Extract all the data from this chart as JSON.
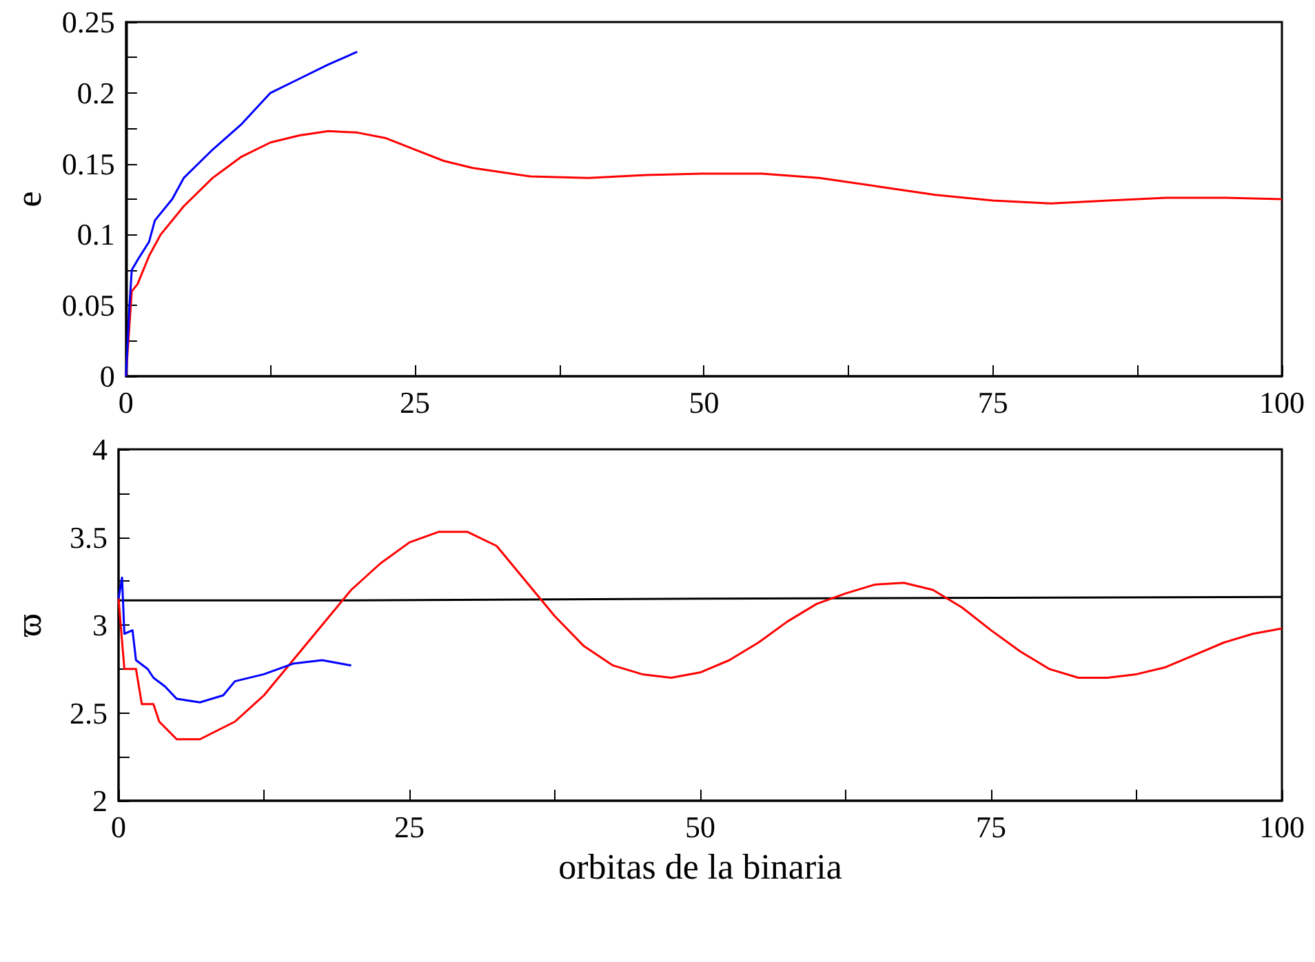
{
  "chart_data": [
    {
      "type": "line",
      "ylabel": "e",
      "xlim": [
        0,
        100
      ],
      "ylim": [
        0,
        0.25
      ],
      "xticks": [
        0,
        {
          "value": 12.5,
          "label": null
        },
        25,
        {
          "value": 37.5,
          "label": null
        },
        50,
        {
          "value": 62.5,
          "label": null
        },
        75,
        {
          "value": 87.5,
          "label": null
        },
        100
      ],
      "yticks": [
        0,
        {
          "value": 0.025,
          "label": null
        },
        0.05,
        {
          "value": 0.075,
          "label": null
        },
        0.1,
        {
          "value": 0.125,
          "label": null
        },
        0.15,
        {
          "value": 0.175,
          "label": null
        },
        0.2,
        {
          "value": 0.225,
          "label": null
        },
        0.25
      ],
      "grid": false,
      "marker": "none",
      "line_style": "solid",
      "series": [
        {
          "color": "#ff0000",
          "x": [
            0,
            0.5,
            1,
            2,
            3,
            5,
            7.5,
            10,
            12.5,
            15,
            17.5,
            20,
            22.5,
            25,
            27.5,
            30,
            35,
            40,
            45,
            50,
            55,
            60,
            65,
            70,
            75,
            80,
            85,
            90,
            95,
            100
          ],
          "values": [
            0,
            0.06,
            0.065,
            0.085,
            0.1,
            0.12,
            0.14,
            0.155,
            0.165,
            0.17,
            0.173,
            0.172,
            0.168,
            0.16,
            0.152,
            0.147,
            0.141,
            0.14,
            0.142,
            0.143,
            0.143,
            0.14,
            0.134,
            0.128,
            0.124,
            0.122,
            0.124,
            0.126,
            0.126,
            0.125
          ]
        },
        {
          "color": "#0000ff",
          "x": [
            0,
            0.3,
            0.5,
            1,
            2,
            2.5,
            4,
            5,
            7.5,
            10,
            12.5,
            15,
            17.5,
            20
          ],
          "values": [
            0,
            0.05,
            0.075,
            0.082,
            0.095,
            0.11,
            0.125,
            0.14,
            0.16,
            0.178,
            0.2,
            0.21,
            0.22,
            0.229
          ]
        }
      ]
    },
    {
      "type": "line",
      "ylabel": "ϖ",
      "xlabel": "orbitas de la binaria",
      "xlim": [
        0,
        100
      ],
      "ylim": [
        2,
        4
      ],
      "xticks": [
        0,
        {
          "value": 12.5,
          "label": null
        },
        25,
        {
          "value": 37.5,
          "label": null
        },
        50,
        {
          "value": 62.5,
          "label": null
        },
        75,
        {
          "value": 87.5,
          "label": null
        },
        100
      ],
      "yticks": [
        2,
        {
          "value": 2.25,
          "label": null
        },
        2.5,
        {
          "value": 2.75,
          "label": null
        },
        3,
        {
          "value": 3.25,
          "label": null
        },
        3.5,
        {
          "value": 3.75,
          "label": null
        },
        4
      ],
      "grid": false,
      "marker": "none",
      "line_style": "solid",
      "series": [
        {
          "color": "#000000",
          "x": [
            0,
            20,
            50,
            100
          ],
          "values": [
            3.14,
            3.14,
            3.15,
            3.16
          ]
        },
        {
          "color": "#ff0000",
          "x": [
            0,
            0.5,
            1.5,
            2,
            3,
            3.5,
            5,
            7,
            10,
            12.5,
            15,
            17.5,
            20,
            22.5,
            25,
            27.5,
            30,
            32.5,
            35,
            37.5,
            40,
            42.5,
            45,
            47.5,
            50,
            52.5,
            55,
            57.5,
            60,
            62.5,
            65,
            67.5,
            70,
            72.5,
            75,
            77.5,
            80,
            82.5,
            85,
            87.5,
            90,
            92.5,
            95,
            97.5,
            100
          ],
          "values": [
            3.15,
            2.75,
            2.75,
            2.55,
            2.55,
            2.45,
            2.35,
            2.35,
            2.45,
            2.6,
            2.8,
            3.0,
            3.2,
            3.35,
            3.47,
            3.53,
            3.53,
            3.45,
            3.25,
            3.05,
            2.88,
            2.77,
            2.72,
            2.7,
            2.73,
            2.8,
            2.9,
            3.02,
            3.12,
            3.18,
            3.23,
            3.24,
            3.2,
            3.1,
            2.97,
            2.85,
            2.75,
            2.7,
            2.7,
            2.72,
            2.76,
            2.83,
            2.9,
            2.95,
            2.98
          ]
        },
        {
          "color": "#0000ff",
          "x": [
            0,
            0.3,
            0.5,
            1.2,
            1.5,
            2.5,
            3,
            4,
            5,
            7,
            9,
            10,
            12.5,
            15,
            17.5,
            20
          ],
          "values": [
            3.15,
            3.27,
            2.95,
            2.97,
            2.8,
            2.75,
            2.7,
            2.65,
            2.58,
            2.56,
            2.6,
            2.68,
            2.72,
            2.78,
            2.8,
            2.77
          ]
        }
      ]
    }
  ]
}
